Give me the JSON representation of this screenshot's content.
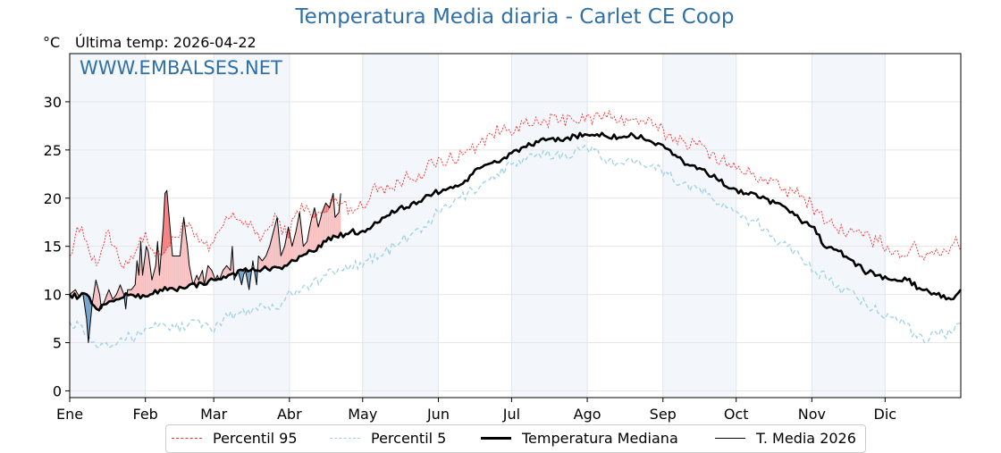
{
  "header": {
    "title": "Temperatura Media diaria - Carlet CE Coop",
    "unit": "°C",
    "last_temp_label": "Última temp: 2026-04-22",
    "watermark": "WWW.EMBALSES.NET"
  },
  "colors": {
    "title": "#2e6fa7",
    "p95": "#ff2a2a",
    "p5": "#9fd0e6",
    "median": "#000000",
    "current": "#000000",
    "above_fill": "#f7bcbc",
    "above_p95_fill": "#ef7a7a",
    "below_fill": "#6b98c2",
    "month_shade": "#f3f7fb"
  },
  "legend": {
    "items": [
      {
        "key": "p95",
        "label": "Percentil 95"
      },
      {
        "key": "p5",
        "label": "Percentil 5"
      },
      {
        "key": "median",
        "label": "Temperatura Mediana"
      },
      {
        "key": "current",
        "label": "T. Media 2026"
      }
    ]
  },
  "chart_data": {
    "type": "line",
    "title": "Temperatura Media diaria - Carlet CE Coop",
    "xlabel": "",
    "ylabel": "°C",
    "ylim": [
      -0.7,
      35
    ],
    "xlim": [
      1,
      366
    ],
    "yticks": [
      0,
      5,
      10,
      15,
      20,
      25,
      30
    ],
    "grid": true,
    "legend_position": "bottom-center",
    "months": [
      {
        "label": "Ene",
        "start_day": 1
      },
      {
        "label": "Feb",
        "start_day": 32
      },
      {
        "label": "Mar",
        "start_day": 60
      },
      {
        "label": "Abr",
        "start_day": 91
      },
      {
        "label": "May",
        "start_day": 121
      },
      {
        "label": "Jun",
        "start_day": 152
      },
      {
        "label": "Jul",
        "start_day": 182
      },
      {
        "label": "Ago",
        "start_day": 213
      },
      {
        "label": "Sep",
        "start_day": 244
      },
      {
        "label": "Oct",
        "start_day": 274
      },
      {
        "label": "Nov",
        "start_day": 305
      },
      {
        "label": "Dic",
        "start_day": 335
      }
    ],
    "series": [
      {
        "name": "Percentil 95",
        "key": "p95",
        "style": "dotted-thin",
        "points": [
          [
            1,
            14.0
          ],
          [
            4,
            17.0
          ],
          [
            8,
            15.5
          ],
          [
            12,
            13.0
          ],
          [
            16,
            16.5
          ],
          [
            22,
            13.0
          ],
          [
            28,
            14.5
          ],
          [
            32,
            16.5
          ],
          [
            36,
            14.0
          ],
          [
            42,
            15.0
          ],
          [
            48,
            17.5
          ],
          [
            52,
            16.0
          ],
          [
            58,
            14.5
          ],
          [
            62,
            16.5
          ],
          [
            68,
            18.5
          ],
          [
            74,
            17.0
          ],
          [
            80,
            16.0
          ],
          [
            86,
            18.0
          ],
          [
            90,
            16.0
          ],
          [
            96,
            19.5
          ],
          [
            100,
            18.0
          ],
          [
            106,
            18.5
          ],
          [
            110,
            20.0
          ],
          [
            116,
            19.0
          ],
          [
            122,
            19.0
          ],
          [
            126,
            21.5
          ],
          [
            132,
            21.0
          ],
          [
            138,
            22.0
          ],
          [
            144,
            22.5
          ],
          [
            150,
            23.5
          ],
          [
            156,
            24.0
          ],
          [
            162,
            24.5
          ],
          [
            168,
            25.5
          ],
          [
            172,
            26.5
          ],
          [
            178,
            27.0
          ],
          [
            184,
            27.5
          ],
          [
            190,
            27.5
          ],
          [
            196,
            28.0
          ],
          [
            202,
            28.0
          ],
          [
            206,
            28.5
          ],
          [
            212,
            28.0
          ],
          [
            218,
            28.5
          ],
          [
            224,
            28.5
          ],
          [
            230,
            28.0
          ],
          [
            236,
            28.0
          ],
          [
            240,
            27.5
          ],
          [
            246,
            26.5
          ],
          [
            252,
            26.0
          ],
          [
            258,
            25.5
          ],
          [
            262,
            25.0
          ],
          [
            268,
            24.0
          ],
          [
            274,
            23.0
          ],
          [
            280,
            22.5
          ],
          [
            286,
            22.0
          ],
          [
            292,
            21.0
          ],
          [
            298,
            20.5
          ],
          [
            302,
            20.0
          ],
          [
            308,
            18.5
          ],
          [
            314,
            17.0
          ],
          [
            320,
            16.5
          ],
          [
            326,
            16.0
          ],
          [
            332,
            15.5
          ],
          [
            336,
            15.0
          ],
          [
            342,
            14.0
          ],
          [
            346,
            15.0
          ],
          [
            350,
            14.0
          ],
          [
            354,
            14.5
          ],
          [
            360,
            14.5
          ],
          [
            364,
            16.0
          ],
          [
            366,
            14.5
          ]
        ]
      },
      {
        "name": "Percentil 5",
        "key": "p5",
        "style": "dashed-thin",
        "points": [
          [
            1,
            7.2
          ],
          [
            6,
            6.8
          ],
          [
            10,
            5.0
          ],
          [
            16,
            5.0
          ],
          [
            22,
            5.5
          ],
          [
            28,
            5.5
          ],
          [
            32,
            6.5
          ],
          [
            38,
            7.0
          ],
          [
            44,
            6.5
          ],
          [
            50,
            7.0
          ],
          [
            56,
            7.0
          ],
          [
            60,
            6.0
          ],
          [
            64,
            7.5
          ],
          [
            70,
            8.0
          ],
          [
            76,
            8.5
          ],
          [
            80,
            9.0
          ],
          [
            86,
            8.5
          ],
          [
            90,
            10.0
          ],
          [
            94,
            10.5
          ],
          [
            100,
            11.0
          ],
          [
            106,
            12.0
          ],
          [
            112,
            12.5
          ],
          [
            116,
            13.0
          ],
          [
            122,
            13.5
          ],
          [
            128,
            14.0
          ],
          [
            134,
            15.0
          ],
          [
            140,
            16.0
          ],
          [
            146,
            17.0
          ],
          [
            152,
            18.5
          ],
          [
            158,
            19.5
          ],
          [
            164,
            20.5
          ],
          [
            170,
            21.5
          ],
          [
            176,
            22.5
          ],
          [
            182,
            23.5
          ],
          [
            188,
            24.0
          ],
          [
            196,
            24.5
          ],
          [
            204,
            24.5
          ],
          [
            210,
            25.0
          ],
          [
            216,
            25.0
          ],
          [
            222,
            24.0
          ],
          [
            228,
            23.5
          ],
          [
            234,
            24.0
          ],
          [
            240,
            23.5
          ],
          [
            246,
            22.5
          ],
          [
            252,
            21.5
          ],
          [
            258,
            21.0
          ],
          [
            264,
            20.0
          ],
          [
            270,
            19.0
          ],
          [
            276,
            18.0
          ],
          [
            282,
            17.5
          ],
          [
            288,
            16.0
          ],
          [
            294,
            15.5
          ],
          [
            300,
            14.0
          ],
          [
            306,
            12.5
          ],
          [
            312,
            11.5
          ],
          [
            318,
            10.5
          ],
          [
            324,
            9.5
          ],
          [
            330,
            8.5
          ],
          [
            336,
            8.0
          ],
          [
            342,
            7.5
          ],
          [
            348,
            5.5
          ],
          [
            352,
            5.0
          ],
          [
            356,
            6.0
          ],
          [
            362,
            6.0
          ],
          [
            366,
            7.0
          ]
        ]
      },
      {
        "name": "Temperatura Mediana",
        "key": "median",
        "style": "solid-thick",
        "points": [
          [
            1,
            10.0
          ],
          [
            5,
            9.8
          ],
          [
            8,
            10.0
          ],
          [
            12,
            8.5
          ],
          [
            16,
            9.0
          ],
          [
            20,
            9.5
          ],
          [
            26,
            10.0
          ],
          [
            32,
            9.8
          ],
          [
            38,
            10.5
          ],
          [
            44,
            10.5
          ],
          [
            50,
            11.0
          ],
          [
            56,
            11.0
          ],
          [
            60,
            11.5
          ],
          [
            66,
            12.0
          ],
          [
            72,
            12.5
          ],
          [
            78,
            12.5
          ],
          [
            84,
            12.8
          ],
          [
            90,
            13.0
          ],
          [
            96,
            14.0
          ],
          [
            100,
            14.5
          ],
          [
            106,
            15.5
          ],
          [
            110,
            16.0
          ],
          [
            116,
            16.5
          ],
          [
            122,
            16.5
          ],
          [
            126,
            17.5
          ],
          [
            130,
            18.0
          ],
          [
            136,
            19.0
          ],
          [
            140,
            19.0
          ],
          [
            146,
            20.0
          ],
          [
            150,
            20.5
          ],
          [
            156,
            21.0
          ],
          [
            162,
            21.5
          ],
          [
            166,
            22.5
          ],
          [
            172,
            23.5
          ],
          [
            178,
            24.0
          ],
          [
            184,
            25.0
          ],
          [
            190,
            25.5
          ],
          [
            196,
            26.0
          ],
          [
            202,
            26.0
          ],
          [
            208,
            26.5
          ],
          [
            214,
            26.5
          ],
          [
            220,
            26.5
          ],
          [
            226,
            26.3
          ],
          [
            232,
            26.5
          ],
          [
            238,
            26.0
          ],
          [
            244,
            25.5
          ],
          [
            248,
            24.5
          ],
          [
            254,
            23.5
          ],
          [
            260,
            23.0
          ],
          [
            266,
            22.0
          ],
          [
            272,
            21.0
          ],
          [
            278,
            20.5
          ],
          [
            284,
            20.0
          ],
          [
            290,
            19.5
          ],
          [
            296,
            18.5
          ],
          [
            302,
            17.5
          ],
          [
            306,
            17.0
          ],
          [
            310,
            15.0
          ],
          [
            316,
            14.5
          ],
          [
            322,
            13.5
          ],
          [
            326,
            12.5
          ],
          [
            332,
            12.0
          ],
          [
            338,
            11.5
          ],
          [
            344,
            11.5
          ],
          [
            350,
            10.5
          ],
          [
            356,
            10.0
          ],
          [
            362,
            9.5
          ],
          [
            366,
            10.5
          ]
        ]
      },
      {
        "name": "T. Media 2026",
        "key": "current",
        "style": "solid-thin",
        "points": [
          [
            1,
            10.0
          ],
          [
            4,
            10.5
          ],
          [
            6,
            9.8
          ],
          [
            8,
            10.2
          ],
          [
            10,
            7.5
          ],
          [
            11,
            5.0
          ],
          [
            13,
            9.0
          ],
          [
            15,
            11.5
          ],
          [
            17,
            10.0
          ],
          [
            18,
            8.5
          ],
          [
            20,
            9.5
          ],
          [
            22,
            10.5
          ],
          [
            24,
            9.5
          ],
          [
            26,
            10.0
          ],
          [
            28,
            11.0
          ],
          [
            30,
            10.0
          ],
          [
            31,
            8.5
          ],
          [
            32,
            10.5
          ],
          [
            34,
            10.5
          ],
          [
            36,
            11.0
          ],
          [
            37,
            13.5
          ],
          [
            38,
            12.0
          ],
          [
            39,
            15.5
          ],
          [
            40,
            12.0
          ],
          [
            42,
            15.0
          ],
          [
            43,
            14.5
          ],
          [
            45,
            11.5
          ],
          [
            47,
            13.0
          ],
          [
            48,
            15.5
          ],
          [
            49,
            12.0
          ],
          [
            51,
            17.0
          ],
          [
            52,
            20.5
          ],
          [
            53,
            20.8
          ],
          [
            56,
            14.0
          ],
          [
            58,
            14.0
          ],
          [
            60,
            14.0
          ],
          [
            62,
            18.0
          ],
          [
            64,
            15.0
          ],
          [
            65,
            13.0
          ],
          [
            67,
            11.0
          ],
          [
            69,
            12.0
          ],
          [
            70,
            11.5
          ],
          [
            72,
            12.5
          ],
          [
            73,
            11.0
          ],
          [
            75,
            13.0
          ],
          [
            77,
            12.5
          ],
          [
            79,
            11.5
          ],
          [
            80,
            12.0
          ],
          [
            81,
            11.5
          ],
          [
            83,
            12.5
          ],
          [
            85,
            13.0
          ],
          [
            87,
            12.5
          ],
          [
            88,
            15.0
          ],
          [
            89,
            11.5
          ],
          [
            91,
            12.5
          ],
          [
            93,
            11.0
          ],
          [
            94,
            12.0
          ],
          [
            95,
            12.5
          ],
          [
            97,
            10.5
          ],
          [
            99,
            13.5
          ],
          [
            101,
            11.0
          ],
          [
            102,
            14.0
          ],
          [
            104,
            13.5
          ],
          [
            106,
            14.0
          ],
          [
            108,
            15.0
          ],
          [
            110,
            16.5
          ],
          [
            112,
            18.0
          ],
          [
            114,
            14.0
          ],
          [
            116,
            15.0
          ],
          [
            118,
            17.0
          ],
          [
            120,
            15.0
          ],
          [
            122,
            16.5
          ],
          [
            124,
            18.5
          ],
          [
            126,
            15.0
          ],
          [
            128,
            15.5
          ],
          [
            130,
            17.5
          ],
          [
            132,
            19.0
          ],
          [
            134,
            17.0
          ],
          [
            136,
            18.5
          ],
          [
            138,
            19.5
          ],
          [
            140,
            19.0
          ],
          [
            142,
            20.5
          ],
          [
            143,
            18.0
          ],
          [
            145,
            18.5
          ],
          [
            146,
            20.5
          ]
        ]
      }
    ],
    "current_series_day_offset": -34,
    "fills": [
      {
        "name": "above-median",
        "between": [
          "current",
          "median"
        ],
        "when": "current > median"
      },
      {
        "name": "above-p95",
        "between": [
          "current",
          "p95"
        ],
        "when": "current > p95"
      },
      {
        "name": "below-median",
        "between": [
          "current",
          "median"
        ],
        "when": "current < median"
      }
    ]
  }
}
